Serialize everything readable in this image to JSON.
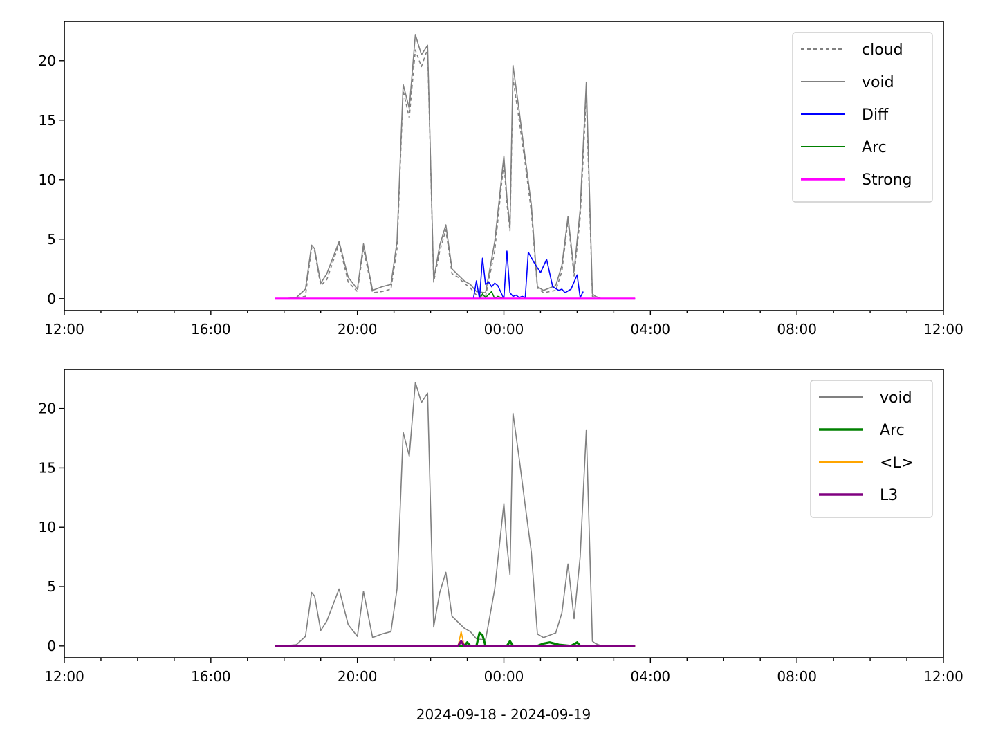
{
  "figure": {
    "xlabel": "2024-09-18 - 2024-09-19"
  },
  "chart_data": [
    {
      "type": "line",
      "x_unit": "time of day (HH:MM, 2024-09-18 12:00 to 2024-09-19 12:00)",
      "xlim": [
        "12:00",
        "12:00 (+1 day)"
      ],
      "ylim": [
        -1,
        23.3
      ],
      "x_ticks": [
        "12:00",
        "16:00",
        "20:00",
        "00:00",
        "04:00",
        "08:00",
        "12:00"
      ],
      "y_ticks": [
        "0",
        "5",
        "10",
        "15",
        "20"
      ],
      "legend_position": "top-right",
      "series": [
        {
          "name": "cloud",
          "color": "#808080",
          "style": "dashed",
          "x": [
            "18:00",
            "18:20",
            "18:35",
            "18:45",
            "18:50",
            "19:00",
            "19:10",
            "19:30",
            "19:45",
            "20:00",
            "20:10",
            "20:25",
            "20:40",
            "20:55",
            "21:05",
            "21:15",
            "21:25",
            "21:35",
            "21:45",
            "21:55",
            "22:05",
            "22:15",
            "22:25",
            "22:35",
            "22:45",
            "22:55",
            "23:05",
            "23:15",
            "23:30",
            "23:45",
            "00:00",
            "00:05",
            "00:10",
            "00:15",
            "00:25",
            "00:35",
            "00:45",
            "00:55",
            "01:05",
            "01:15",
            "01:25",
            "01:35",
            "01:45",
            "01:55",
            "02:05",
            "02:15",
            "02:25",
            "02:30",
            "02:40",
            "02:55",
            "03:10",
            "03:35"
          ],
          "y": [
            0.0,
            0.1,
            0.2,
            4.3,
            4.0,
            1.1,
            1.6,
            4.6,
            1.4,
            0.6,
            4.2,
            0.5,
            0.6,
            0.8,
            4.2,
            17.5,
            15.2,
            20.9,
            19.5,
            21.0,
            1.4,
            4.0,
            5.8,
            2.1,
            1.8,
            1.3,
            0.9,
            0.3,
            0.2,
            4.0,
            11.5,
            8.0,
            5.7,
            18.5,
            15.0,
            11.3,
            7.3,
            0.9,
            0.5,
            0.6,
            0.7,
            2.3,
            6.6,
            1.9,
            6.8,
            17.0,
            0.2,
            0.1,
            0.0,
            0.0,
            0.0,
            0.0
          ]
        },
        {
          "name": "void",
          "color": "#808080",
          "style": "solid",
          "x": [
            "18:00",
            "18:20",
            "18:35",
            "18:45",
            "18:50",
            "19:00",
            "19:10",
            "19:30",
            "19:45",
            "20:00",
            "20:10",
            "20:25",
            "20:40",
            "20:55",
            "21:05",
            "21:15",
            "21:25",
            "21:35",
            "21:45",
            "21:55",
            "22:05",
            "22:15",
            "22:25",
            "22:35",
            "22:45",
            "22:55",
            "23:05",
            "23:15",
            "23:30",
            "23:45",
            "00:00",
            "00:05",
            "00:10",
            "00:15",
            "00:25",
            "00:35",
            "00:45",
            "00:55",
            "01:05",
            "01:15",
            "01:25",
            "01:35",
            "01:45",
            "01:55",
            "02:05",
            "02:15",
            "02:25",
            "02:30",
            "02:40",
            "02:55",
            "03:10",
            "03:35"
          ],
          "y": [
            0.0,
            0.1,
            0.8,
            4.5,
            4.2,
            1.3,
            2.1,
            4.8,
            1.8,
            0.8,
            4.6,
            0.7,
            1.0,
            1.2,
            4.8,
            18.0,
            16.0,
            22.2,
            20.5,
            21.3,
            1.6,
            4.5,
            6.2,
            2.5,
            2.0,
            1.5,
            1.2,
            0.6,
            0.5,
            4.8,
            12.0,
            8.5,
            6.0,
            19.6,
            15.8,
            11.8,
            7.9,
            1.0,
            0.7,
            0.9,
            1.1,
            2.8,
            6.9,
            2.3,
            7.5,
            18.2,
            0.4,
            0.2,
            0.0,
            0.0,
            0.0,
            0.0
          ]
        },
        {
          "name": "Diff",
          "color": "#0000ff",
          "style": "solid",
          "x": [
            "23:10",
            "23:15",
            "23:20",
            "23:25",
            "23:30",
            "23:35",
            "23:40",
            "23:45",
            "23:50",
            "00:00",
            "00:05",
            "00:10",
            "00:15",
            "00:20",
            "00:25",
            "00:30",
            "00:35",
            "00:40",
            "00:50",
            "01:00",
            "01:10",
            "01:20",
            "01:30",
            "01:35",
            "01:40",
            "01:50",
            "02:00",
            "02:05",
            "02:10"
          ],
          "y": [
            0.0,
            1.5,
            0.0,
            3.4,
            1.2,
            1.4,
            1.0,
            1.3,
            1.1,
            0.0,
            4.0,
            0.5,
            0.2,
            0.3,
            0.1,
            0.2,
            0.1,
            3.9,
            3.0,
            2.2,
            3.3,
            1.0,
            0.7,
            0.8,
            0.5,
            0.8,
            2.0,
            0.1,
            0.6
          ]
        },
        {
          "name": "Arc",
          "color": "#008000",
          "style": "solid",
          "x": [
            "23:20",
            "23:25",
            "23:30",
            "23:40",
            "23:45",
            "23:50",
            "00:00"
          ],
          "y": [
            0.0,
            0.4,
            0.1,
            0.6,
            0.0,
            0.2,
            0.0
          ]
        },
        {
          "name": "Strong",
          "color": "#ff00ff",
          "style": "solid-thick",
          "x": [
            "17:45",
            "03:35"
          ],
          "y": [
            0.0,
            0.0
          ]
        }
      ]
    },
    {
      "type": "line",
      "x_unit": "time of day (HH:MM, 2024-09-18 12:00 to 2024-09-19 12:00)",
      "xlim": [
        "12:00",
        "12:00 (+1 day)"
      ],
      "ylim": [
        -1,
        23.3
      ],
      "x_ticks": [
        "12:00",
        "16:00",
        "20:00",
        "00:00",
        "04:00",
        "08:00",
        "12:00"
      ],
      "y_ticks": [
        "0",
        "5",
        "10",
        "15",
        "20"
      ],
      "legend_position": "top-right",
      "series": [
        {
          "name": "void",
          "color": "#808080",
          "style": "solid",
          "x": [
            "18:00",
            "18:20",
            "18:35",
            "18:45",
            "18:50",
            "19:00",
            "19:10",
            "19:30",
            "19:45",
            "20:00",
            "20:10",
            "20:25",
            "20:40",
            "20:55",
            "21:05",
            "21:15",
            "21:25",
            "21:35",
            "21:45",
            "21:55",
            "22:05",
            "22:15",
            "22:25",
            "22:35",
            "22:45",
            "22:55",
            "23:05",
            "23:15",
            "23:30",
            "23:45",
            "00:00",
            "00:05",
            "00:10",
            "00:15",
            "00:25",
            "00:35",
            "00:45",
            "00:55",
            "01:05",
            "01:15",
            "01:25",
            "01:35",
            "01:45",
            "01:55",
            "02:05",
            "02:15",
            "02:25",
            "02:30",
            "02:40",
            "02:55",
            "03:10",
            "03:35"
          ],
          "y": [
            0.0,
            0.1,
            0.8,
            4.5,
            4.2,
            1.3,
            2.1,
            4.8,
            1.8,
            0.8,
            4.6,
            0.7,
            1.0,
            1.2,
            4.8,
            18.0,
            16.0,
            22.2,
            20.5,
            21.3,
            1.6,
            4.5,
            6.2,
            2.5,
            2.0,
            1.5,
            1.2,
            0.6,
            0.5,
            4.8,
            12.0,
            8.5,
            6.0,
            19.6,
            15.8,
            11.8,
            7.9,
            1.0,
            0.7,
            0.9,
            1.1,
            2.8,
            6.9,
            2.3,
            7.5,
            18.2,
            0.4,
            0.2,
            0.0,
            0.0,
            0.0,
            0.0
          ]
        },
        {
          "name": "Arc",
          "color": "#008000",
          "style": "solid-thick",
          "x": [
            "17:45",
            "22:55",
            "23:00",
            "23:05",
            "23:15",
            "23:20",
            "23:25",
            "23:30",
            "00:05",
            "00:10",
            "00:15",
            "00:55",
            "01:05",
            "01:15",
            "01:30",
            "01:50",
            "02:00",
            "02:05",
            "03:35"
          ],
          "y": [
            0.0,
            0.0,
            0.3,
            0.0,
            0.0,
            1.1,
            0.9,
            0.0,
            0.0,
            0.4,
            0.0,
            0.0,
            0.2,
            0.3,
            0.1,
            0.0,
            0.3,
            0.0,
            0.0
          ]
        },
        {
          "name": "<L>",
          "color": "#ffa500",
          "style": "solid",
          "x": [
            "17:45",
            "22:45",
            "22:50",
            "22:55",
            "23:00",
            "03:35"
          ],
          "y": [
            0.0,
            0.0,
            1.2,
            0.0,
            0.0,
            0.0
          ]
        },
        {
          "name": "L3",
          "color": "#800080",
          "style": "solid-thick",
          "x": [
            "17:45",
            "22:45",
            "22:50",
            "22:55",
            "03:35"
          ],
          "y": [
            0.0,
            0.0,
            0.4,
            0.0,
            0.0
          ]
        }
      ]
    }
  ]
}
